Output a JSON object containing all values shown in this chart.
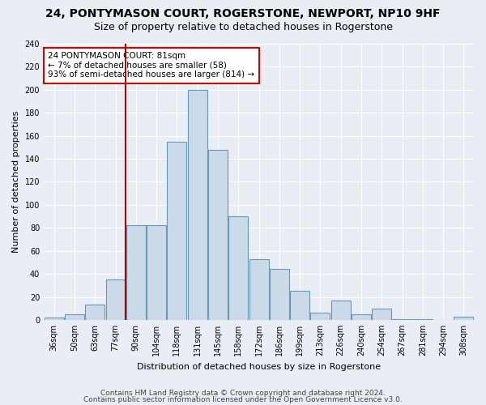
{
  "title1": "24, PONTYMASON COURT, ROGERSTONE, NEWPORT, NP10 9HF",
  "title2": "Size of property relative to detached houses in Rogerstone",
  "xlabel": "Distribution of detached houses by size in Rogerstone",
  "ylabel": "Number of detached properties",
  "categories": [
    "36sqm",
    "50sqm",
    "63sqm",
    "77sqm",
    "90sqm",
    "104sqm",
    "118sqm",
    "131sqm",
    "145sqm",
    "158sqm",
    "172sqm",
    "186sqm",
    "199sqm",
    "213sqm",
    "226sqm",
    "240sqm",
    "254sqm",
    "267sqm",
    "281sqm",
    "294sqm",
    "308sqm"
  ],
  "values": [
    2,
    5,
    13,
    35,
    82,
    82,
    155,
    200,
    148,
    90,
    53,
    44,
    25,
    6,
    17,
    5,
    10,
    1,
    1,
    0,
    3
  ],
  "bar_color": "#ccd9e8",
  "bar_edge_color": "#6699bb",
  "vline_color": "#aa0000",
  "vline_index": 4,
  "annotation_text": "24 PONTYMASON COURT: 81sqm\n← 7% of detached houses are smaller (58)\n93% of semi-detached houses are larger (814) →",
  "annotation_box_facecolor": "#ffffff",
  "annotation_box_edgecolor": "#cc0000",
  "ylim": [
    0,
    240
  ],
  "yticks": [
    0,
    20,
    40,
    60,
    80,
    100,
    120,
    140,
    160,
    180,
    200,
    220,
    240
  ],
  "footer1": "Contains HM Land Registry data © Crown copyright and database right 2024.",
  "footer2": "Contains public sector information licensed under the Open Government Licence v3.0.",
  "bg_color": "#e8eef4",
  "grid_color": "#ffffff",
  "title1_fontsize": 10,
  "title2_fontsize": 9,
  "axis_fontsize": 8,
  "tick_fontsize": 7,
  "annot_fontsize": 7.5,
  "footer_fontsize": 6.5
}
